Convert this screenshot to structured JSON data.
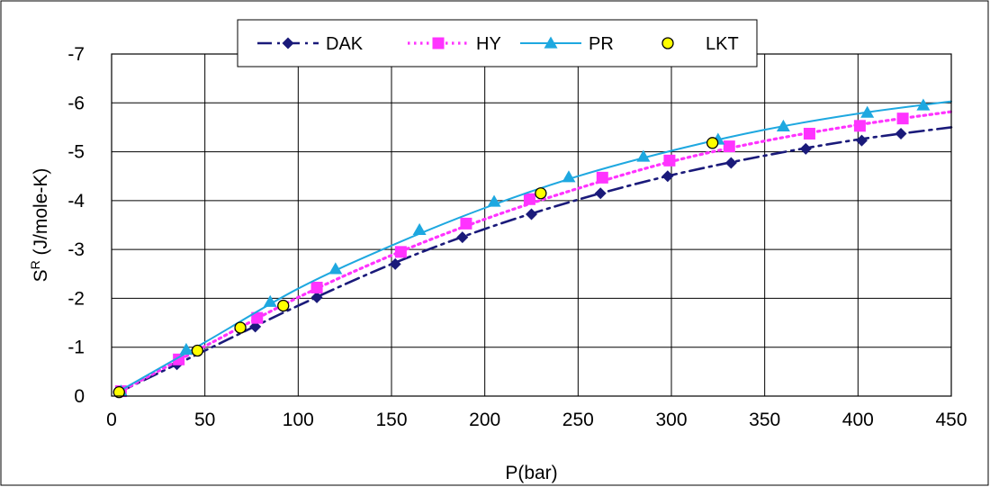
{
  "chart_data": {
    "type": "line",
    "title": "",
    "xlabel": "P(bar)",
    "ylabel_main": "S",
    "ylabel_sup": "R",
    "ylabel_rest": " (J/mole-K)",
    "xlim": [
      0,
      450
    ],
    "ylim": [
      0,
      -7
    ],
    "y_inverted": true,
    "grid": true,
    "legend_placement": "top-center",
    "x_ticks": [
      "0",
      "50",
      "100",
      "150",
      "200",
      "250",
      "300",
      "350",
      "400",
      "450"
    ],
    "x_tick_values": [
      0,
      50,
      100,
      150,
      200,
      250,
      300,
      350,
      400,
      450
    ],
    "y_ticks": [
      "0",
      "-1",
      "-2",
      "-3",
      "-4",
      "-5",
      "-6",
      "-7"
    ],
    "y_tick_values": [
      0,
      -1,
      -2,
      -3,
      -4,
      -5,
      -6,
      -7
    ],
    "series": [
      {
        "name": "DAK",
        "color": "#1a1a7a",
        "line_style": "dashdot",
        "marker": "diamond",
        "x": [
          5,
          35,
          77,
          110,
          152,
          188,
          225,
          262,
          298,
          332,
          372,
          402,
          423
        ],
        "y": [
          -0.1,
          -0.65,
          -1.42,
          -2.02,
          -2.7,
          -3.25,
          -3.72,
          -4.15,
          -4.5,
          -4.77,
          -5.06,
          -5.23,
          -5.37
        ],
        "curve_x": [
          4,
          50,
          100,
          150,
          200,
          250,
          300,
          350,
          400,
          450
        ],
        "curve_y": [
          -0.08,
          -0.93,
          -1.85,
          -2.7,
          -3.42,
          -4.02,
          -4.52,
          -4.92,
          -5.25,
          -5.5
        ]
      },
      {
        "name": "HY",
        "color": "#ff33ff",
        "line_style": "dotted",
        "marker": "square",
        "x": [
          5,
          36,
          78,
          110,
          155,
          190,
          224,
          263,
          299,
          331,
          374,
          401,
          424
        ],
        "y": [
          -0.1,
          -0.75,
          -1.6,
          -2.22,
          -2.95,
          -3.53,
          -4.03,
          -4.47,
          -4.82,
          -5.11,
          -5.37,
          -5.53,
          -5.68
        ],
        "curve_x": [
          4,
          50,
          100,
          150,
          200,
          250,
          300,
          350,
          400,
          450
        ],
        "curve_y": [
          -0.08,
          -1.02,
          -2.02,
          -2.88,
          -3.62,
          -4.25,
          -4.8,
          -5.22,
          -5.55,
          -5.82
        ]
      },
      {
        "name": "PR",
        "color": "#1ea8e0",
        "line_style": "solid",
        "marker": "triangle",
        "x": [
          5,
          40,
          85,
          120,
          165,
          205,
          245,
          285,
          325,
          360,
          405,
          435
        ],
        "y": [
          -0.1,
          -0.95,
          -1.93,
          -2.6,
          -3.4,
          -3.98,
          -4.48,
          -4.9,
          -5.25,
          -5.52,
          -5.8,
          -5.95
        ],
        "curve_x": [
          4,
          50,
          100,
          150,
          200,
          250,
          300,
          350,
          400,
          450
        ],
        "curve_y": [
          -0.1,
          -1.1,
          -2.2,
          -3.08,
          -3.85,
          -4.5,
          -5.02,
          -5.45,
          -5.78,
          -6.03
        ]
      },
      {
        "name": "LKT",
        "color": "#ffff00",
        "edge_color": "#000000",
        "line_style": "none",
        "marker": "circle",
        "x": [
          4,
          46,
          69,
          92,
          230,
          322
        ],
        "y": [
          -0.08,
          -0.93,
          -1.4,
          -1.85,
          -4.15,
          -5.18
        ]
      }
    ]
  }
}
